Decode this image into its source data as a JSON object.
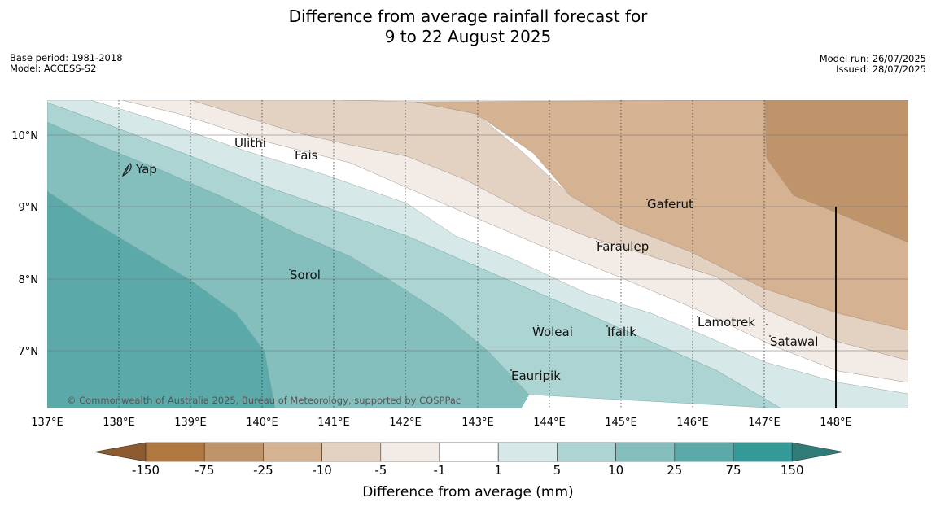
{
  "header": {
    "title_line1": "Difference from average rainfall forecast for",
    "title_line2": "9 to 22 August 2025",
    "base_period": "Base period: 1981-2018",
    "model": "Model: ACCESS-S2",
    "model_run": "Model run: 26/07/2025",
    "issued": "Issued: 28/07/2025"
  },
  "map": {
    "lat_labels": [
      "10°N",
      "9°N",
      "8°N",
      "7°N"
    ],
    "lon_labels": [
      "137°E",
      "138°E",
      "139°E",
      "140°E",
      "141°E",
      "142°E",
      "143°E",
      "144°E",
      "145°E",
      "146°E",
      "147°E",
      "148°E"
    ],
    "places": [
      "Yap",
      "Ulithi",
      "Fais",
      "Gaferut",
      "Faraulep",
      "Sorol",
      "Lamotrek",
      "Woleai",
      "Ifalik",
      "Satawal",
      "Eauripik"
    ],
    "copyright": "© Commonwealth of Australia 2025, Bureau of Meteorology, supported by COSPPac"
  },
  "colorbar": {
    "ticks": [
      "-150",
      "-75",
      "-25",
      "-10",
      "-5",
      "-1",
      "1",
      "5",
      "10",
      "25",
      "75",
      "150"
    ],
    "label": "Difference from average (mm)",
    "colors": [
      "#8c5a2c",
      "#b07840",
      "#c0946a",
      "#d4b292",
      "#e3d1c1",
      "#f3ece6",
      "#ffffff",
      "#d6e9e8",
      "#acd4d3",
      "#84bfbe",
      "#5baaa9",
      "#349a97",
      "#2f7b78"
    ]
  }
}
